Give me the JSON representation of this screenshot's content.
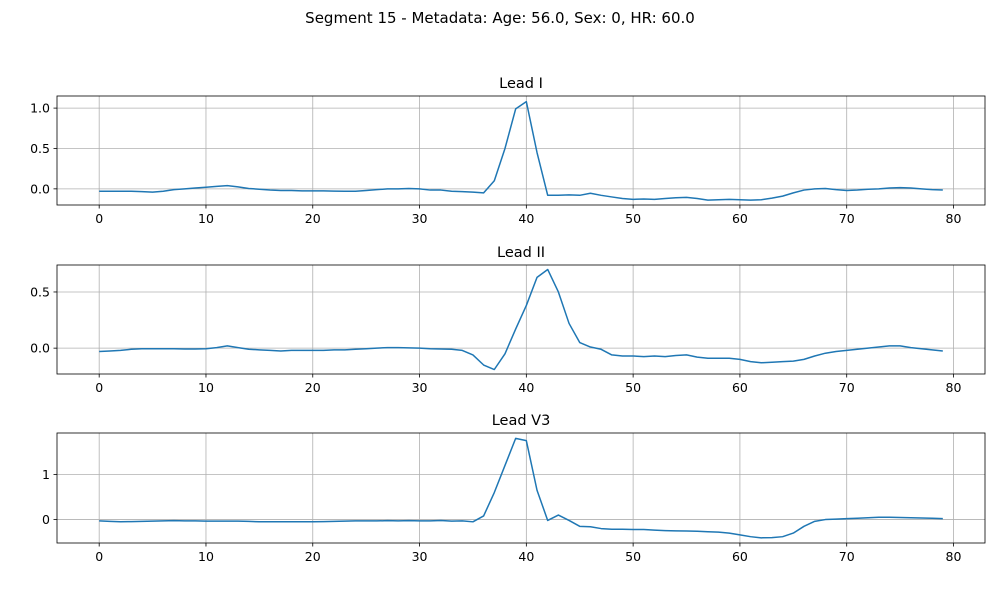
{
  "figure": {
    "suptitle": "Segment 15 - Metadata: Age: 56.0, Sex: 0, HR: 60.0"
  },
  "chart_data": [
    {
      "type": "line",
      "title": "Lead I",
      "xlabel": "",
      "ylabel": "",
      "xlim": [
        -3.95,
        82.95
      ],
      "ylim": [
        -0.2,
        1.15
      ],
      "xticks": [
        0,
        10,
        20,
        30,
        40,
        50,
        60,
        70,
        80
      ],
      "yticks": [
        0.0,
        0.5,
        1.0
      ],
      "ytick_labels": [
        "0.0",
        "0.5",
        "1.0"
      ],
      "grid": true,
      "line_color": "#1f77b4",
      "x_start": 0,
      "values": [
        -0.03,
        -0.03,
        -0.03,
        -0.03,
        -0.035,
        -0.04,
        -0.03,
        -0.01,
        0.0,
        0.01,
        0.02,
        0.03,
        0.04,
        0.025,
        0.005,
        -0.005,
        -0.015,
        -0.02,
        -0.02,
        -0.025,
        -0.025,
        -0.025,
        -0.028,
        -0.03,
        -0.03,
        -0.02,
        -0.01,
        0.0,
        0.0,
        0.005,
        0.0,
        -0.015,
        -0.015,
        -0.03,
        -0.035,
        -0.04,
        -0.05,
        0.1,
        0.5,
        0.99,
        1.08,
        0.45,
        -0.08,
        -0.08,
        -0.075,
        -0.08,
        -0.055,
        -0.08,
        -0.1,
        -0.12,
        -0.13,
        -0.125,
        -0.13,
        -0.12,
        -0.11,
        -0.105,
        -0.12,
        -0.14,
        -0.135,
        -0.13,
        -0.135,
        -0.14,
        -0.135,
        -0.115,
        -0.09,
        -0.05,
        -0.015,
        0.0,
        0.005,
        -0.01,
        -0.02,
        -0.015,
        -0.005,
        0.0,
        0.01,
        0.015,
        0.01,
        0.0,
        -0.01,
        -0.015
      ]
    },
    {
      "type": "line",
      "title": "Lead II",
      "xlabel": "",
      "ylabel": "",
      "xlim": [
        -3.95,
        82.95
      ],
      "ylim": [
        -0.23,
        0.74
      ],
      "xticks": [
        0,
        10,
        20,
        30,
        40,
        50,
        60,
        70,
        80
      ],
      "yticks": [
        0.0,
        0.5
      ],
      "ytick_labels": [
        "0.0",
        "0.5"
      ],
      "grid": true,
      "line_color": "#1f77b4",
      "x_start": 0,
      "values": [
        -0.03,
        -0.025,
        -0.02,
        -0.01,
        -0.005,
        -0.005,
        -0.005,
        -0.005,
        -0.008,
        -0.008,
        -0.005,
        0.005,
        0.02,
        0.005,
        -0.01,
        -0.015,
        -0.02,
        -0.025,
        -0.02,
        -0.02,
        -0.02,
        -0.02,
        -0.015,
        -0.015,
        -0.01,
        -0.005,
        0.0,
        0.005,
        0.005,
        0.002,
        0.0,
        -0.005,
        -0.008,
        -0.01,
        -0.02,
        -0.06,
        -0.15,
        -0.19,
        -0.05,
        0.17,
        0.38,
        0.63,
        0.7,
        0.5,
        0.22,
        0.05,
        0.01,
        -0.01,
        -0.06,
        -0.07,
        -0.07,
        -0.075,
        -0.07,
        -0.075,
        -0.065,
        -0.06,
        -0.08,
        -0.09,
        -0.09,
        -0.09,
        -0.1,
        -0.12,
        -0.13,
        -0.125,
        -0.12,
        -0.115,
        -0.1,
        -0.07,
        -0.045,
        -0.03,
        -0.02,
        -0.01,
        0.0,
        0.01,
        0.02,
        0.02,
        0.005,
        -0.005,
        -0.015,
        -0.025
      ]
    },
    {
      "type": "line",
      "title": "Lead V3",
      "xlabel": "",
      "ylabel": "",
      "xlim": [
        -3.95,
        82.95
      ],
      "ylim": [
        -0.52,
        1.92
      ],
      "xticks": [
        0,
        10,
        20,
        30,
        40,
        50,
        60,
        70,
        80
      ],
      "yticks": [
        0,
        1
      ],
      "ytick_labels": [
        "0",
        "1"
      ],
      "grid": true,
      "line_color": "#1f77b4",
      "x_start": 0,
      "values": [
        -0.03,
        -0.04,
        -0.05,
        -0.045,
        -0.04,
        -0.035,
        -0.03,
        -0.025,
        -0.03,
        -0.03,
        -0.035,
        -0.035,
        -0.035,
        -0.035,
        -0.04,
        -0.05,
        -0.05,
        -0.05,
        -0.05,
        -0.05,
        -0.05,
        -0.045,
        -0.04,
        -0.035,
        -0.03,
        -0.03,
        -0.03,
        -0.025,
        -0.03,
        -0.025,
        -0.03,
        -0.03,
        -0.02,
        -0.035,
        -0.03,
        -0.05,
        0.08,
        0.6,
        1.2,
        1.8,
        1.75,
        0.65,
        -0.02,
        0.1,
        -0.02,
        -0.15,
        -0.16,
        -0.2,
        -0.215,
        -0.215,
        -0.22,
        -0.22,
        -0.235,
        -0.245,
        -0.25,
        -0.255,
        -0.26,
        -0.27,
        -0.28,
        -0.3,
        -0.34,
        -0.38,
        -0.405,
        -0.4,
        -0.38,
        -0.3,
        -0.15,
        -0.04,
        0.0,
        0.01,
        0.02,
        0.03,
        0.04,
        0.05,
        0.05,
        0.045,
        0.04,
        0.035,
        0.03,
        0.02
      ]
    }
  ]
}
